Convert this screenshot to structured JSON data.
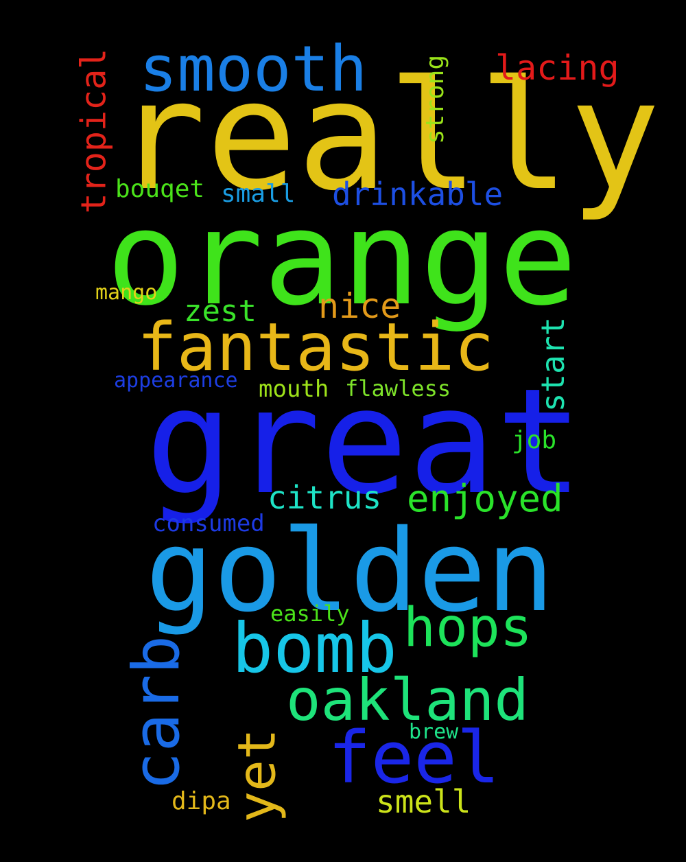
{
  "words": [
    {
      "text": "really",
      "color": "#e3c416",
      "orientation": "horizontal"
    },
    {
      "text": "orange",
      "color": "#3fe31b",
      "orientation": "horizontal"
    },
    {
      "text": "great",
      "color": "#1620e8",
      "orientation": "horizontal"
    },
    {
      "text": "golden",
      "color": "#1a9ae6",
      "orientation": "horizontal"
    },
    {
      "text": "fantastic",
      "color": "#e8b718",
      "orientation": "horizontal"
    },
    {
      "text": "bomb",
      "color": "#17c6e8",
      "orientation": "horizontal"
    },
    {
      "text": "smooth",
      "color": "#1a7fe6",
      "orientation": "horizontal"
    },
    {
      "text": "oakland",
      "color": "#1ee37a",
      "orientation": "horizontal"
    },
    {
      "text": "feel",
      "color": "#1a26e8",
      "orientation": "horizontal"
    },
    {
      "text": "hops",
      "color": "#1de35a",
      "orientation": "horizontal"
    },
    {
      "text": "carb",
      "color": "#1a6be6",
      "orientation": "vertical"
    },
    {
      "text": "yet",
      "color": "#e3b81a",
      "orientation": "vertical"
    },
    {
      "text": "enjoyed",
      "color": "#2ae32a",
      "orientation": "horizontal"
    },
    {
      "text": "drinkable",
      "color": "#1d4fe3",
      "orientation": "horizontal"
    },
    {
      "text": "nice",
      "color": "#e39a1a",
      "orientation": "horizontal"
    },
    {
      "text": "citrus",
      "color": "#1ee3c6",
      "orientation": "horizontal"
    },
    {
      "text": "smell",
      "color": "#cce31a",
      "orientation": "horizontal"
    },
    {
      "text": "lacing",
      "color": "#e31a1a",
      "orientation": "horizontal"
    },
    {
      "text": "tropical",
      "color": "#e3231a",
      "orientation": "vertical"
    },
    {
      "text": "start",
      "color": "#1ee3b0",
      "orientation": "vertical"
    },
    {
      "text": "zest",
      "color": "#3ae32a",
      "orientation": "horizontal"
    },
    {
      "text": "bouqet",
      "color": "#4be31a",
      "orientation": "horizontal"
    },
    {
      "text": "small",
      "color": "#1a9de3",
      "orientation": "horizontal"
    },
    {
      "text": "strong",
      "color": "#9ae31a",
      "orientation": "vertical"
    },
    {
      "text": "mouth",
      "color": "#9ee31a",
      "orientation": "horizontal"
    },
    {
      "text": "flawless",
      "color": "#7ee32a",
      "orientation": "horizontal"
    },
    {
      "text": "appearance",
      "color": "#1d3ee3",
      "orientation": "horizontal"
    },
    {
      "text": "job",
      "color": "#2ae32a",
      "orientation": "horizontal"
    },
    {
      "text": "consumed",
      "color": "#1d3ae3",
      "orientation": "horizontal"
    },
    {
      "text": "easily",
      "color": "#4be31a",
      "orientation": "horizontal"
    },
    {
      "text": "dipa",
      "color": "#e3b81a",
      "orientation": "horizontal"
    },
    {
      "text": "mango",
      "color": "#e3d21a",
      "orientation": "horizontal"
    },
    {
      "text": "brew",
      "color": "#1ee38a",
      "orientation": "horizontal"
    }
  ]
}
